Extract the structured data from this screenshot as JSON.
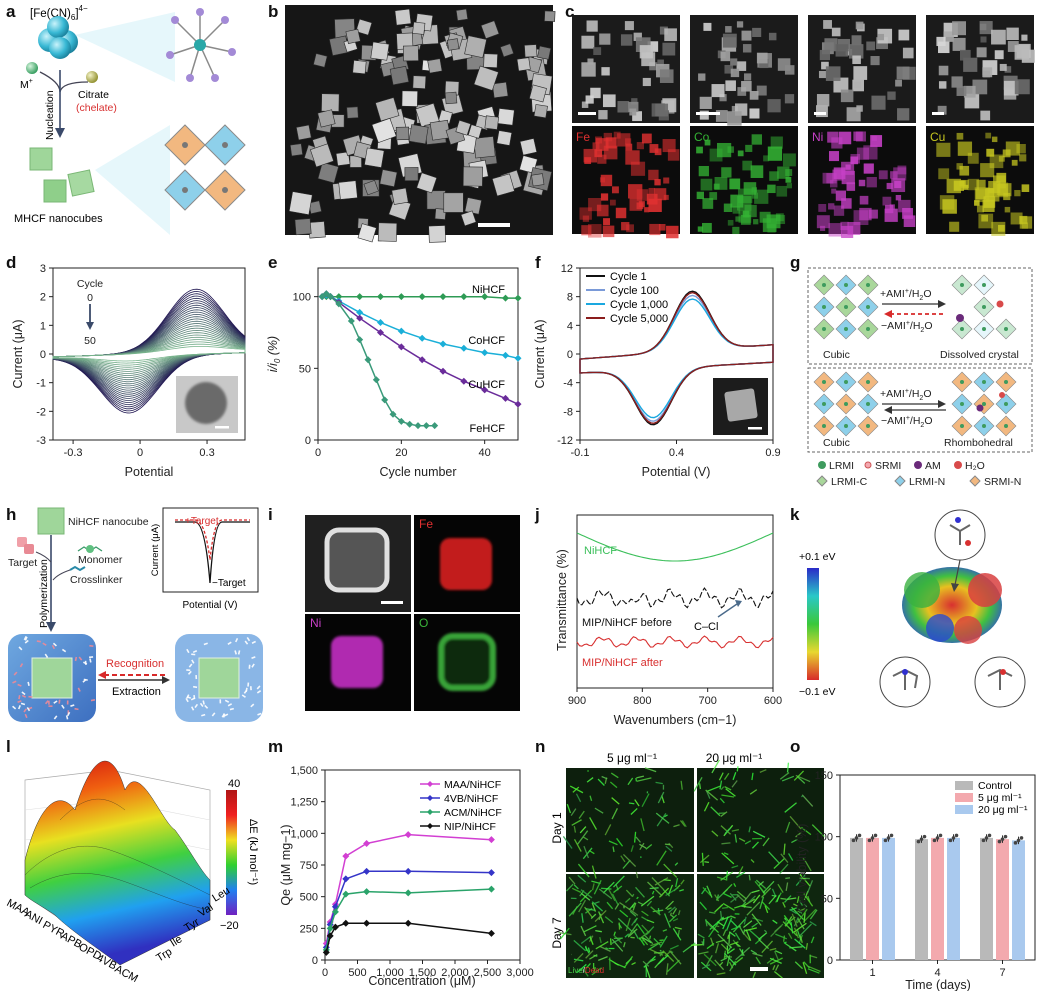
{
  "panel_labels": [
    "a",
    "b",
    "c",
    "d",
    "e",
    "f",
    "g",
    "h",
    "i",
    "j",
    "k",
    "l",
    "m",
    "n",
    "o"
  ],
  "panel_a": {
    "formula_main": "[Fe(CN)",
    "formula_sub": "6",
    "formula_end": "]",
    "formula_sup": "4−",
    "metal": "M",
    "metal_sup": "+",
    "citrate": "Citrate",
    "chelate": "(chelate)",
    "nucleation": "Nucleation",
    "product": "MHCF nanocubes"
  },
  "panel_c": {
    "elements": [
      "Fe",
      "Co",
      "Ni",
      "Cu"
    ],
    "element_colors": [
      "#e03030",
      "#34b334",
      "#c640c6",
      "#c8c820"
    ]
  },
  "panel_d": {
    "cycle_label": "Cycle",
    "cycle_start": "0",
    "cycle_end": "50",
    "ylabel": "Current (μA)",
    "xlabel": "Potential",
    "xticks": [
      "-0.3",
      "0",
      "0.3"
    ],
    "yticks": [
      "3",
      "2",
      "1",
      "0",
      "-1",
      "-2",
      "-3"
    ]
  },
  "panel_h": {
    "nanocube": "NiHCF nanocube",
    "monomer": "Monomer",
    "crosslinker": "Crosslinker",
    "target": "Target",
    "polymerization": "Polymerization",
    "recognition": "Recognition",
    "extraction": "Extraction",
    "inset_plus": "+Target",
    "inset_minus": "−Target",
    "inset_ylabel": "Current (μA)",
    "inset_xlabel": "Potential (V)"
  },
  "panel_i": {
    "elements": [
      "Fe",
      "Ni",
      "O"
    ]
  },
  "panel_g": {
    "cubic": "Cubic",
    "dissolved": "Dissolved crystal",
    "rhombohedral": "Rhombohedral",
    "plus": "+AMI",
    "minus": "−AMI",
    "h2o": "/H",
    "legend": [
      "LRMI",
      "SRMI",
      "AM",
      "H₂O",
      "LRMI-C",
      "LRMI-N",
      "SRMI-N"
    ]
  },
  "panel_k": {
    "cbar_top": "+0.1 eV",
    "cbar_bottom": "−0.1 eV"
  },
  "panel_l": {
    "cbar_label": "ΔE (kJ mol⁻¹)",
    "cbar_max": "40",
    "cbar_min": "−20",
    "monomers": [
      "MAA",
      "ANI",
      "PYR",
      "APB",
      "OPD",
      "4VB",
      "ACM"
    ],
    "amino_acids": [
      "Leu",
      "Val",
      "Tyr",
      "Ile",
      "Trp"
    ]
  },
  "panel_n": {
    "col_labels": [
      "5 μg ml⁻¹",
      "20 μg ml⁻¹"
    ],
    "row_labels": [
      "Day 1",
      "Day 7"
    ],
    "live": "Live",
    "slash": "/",
    "dead": "Dead"
  },
  "chart_data": [
    {
      "panel": "e",
      "type": "line",
      "xlabel": "Cycle number",
      "ylabel": "i/i0 (%)",
      "xlim": [
        0,
        48
      ],
      "ylim": [
        0,
        120
      ],
      "xticks": [
        0,
        20,
        40
      ],
      "yticks": [
        0,
        50,
        100
      ],
      "series": [
        {
          "name": "NiHCF",
          "color": "#2e9b55",
          "x": [
            1,
            2,
            3,
            5,
            10,
            15,
            20,
            25,
            30,
            35,
            40,
            45,
            48
          ],
          "y": [
            100,
            100,
            100,
            100,
            100,
            100,
            100,
            100,
            100,
            100,
            100,
            99,
            99
          ]
        },
        {
          "name": "CoHCF",
          "color": "#1aafd8",
          "x": [
            1,
            2,
            3,
            5,
            10,
            15,
            20,
            25,
            30,
            35,
            40,
            45,
            48
          ],
          "y": [
            100,
            101,
            100,
            97,
            89,
            82,
            76,
            71,
            67,
            64,
            61,
            59,
            57
          ]
        },
        {
          "name": "CuHCF",
          "color": "#6a2c9a",
          "x": [
            1,
            2,
            3,
            5,
            10,
            15,
            20,
            25,
            30,
            35,
            40,
            45,
            48
          ],
          "y": [
            100,
            102,
            100,
            96,
            85,
            75,
            65,
            56,
            48,
            41,
            35,
            29,
            25
          ]
        },
        {
          "name": "FeHCF",
          "color": "#3a9a7a",
          "x": [
            1,
            2,
            3,
            5,
            8,
            10,
            12,
            14,
            16,
            18,
            20,
            22,
            24,
            26,
            28
          ],
          "y": [
            100,
            102,
            100,
            95,
            83,
            70,
            56,
            42,
            28,
            18,
            13,
            11,
            10,
            10,
            10
          ]
        }
      ]
    },
    {
      "panel": "f",
      "type": "line",
      "xlabel": "Potential (V)",
      "ylabel": "Current (μA)",
      "xlim": [
        -0.1,
        0.9
      ],
      "ylim": [
        -12,
        12
      ],
      "xticks": [
        -0.1,
        0.4,
        0.9
      ],
      "yticks": [
        -12,
        -8,
        -4,
        0,
        4,
        8,
        12
      ],
      "series": [
        {
          "name": "Cycle 1",
          "color": "#111111",
          "peak_anodic": 8.3,
          "peak_cathodic": -7.8
        },
        {
          "name": "Cycle 100",
          "color": "#7a9ad8",
          "peak_anodic": 7.7,
          "peak_cathodic": -7.3
        },
        {
          "name": "Cycle 1,000",
          "color": "#1aa8e0",
          "peak_anodic": 7.2,
          "peak_cathodic": -6.8
        },
        {
          "name": "Cycle 5,000",
          "color": "#8b1d1d",
          "peak_anodic": 8.1,
          "peak_cathodic": -7.6
        }
      ]
    },
    {
      "panel": "j",
      "type": "line",
      "xlabel": "Wavenumbers (cm−1)",
      "ylabel": "Transmittance (%)",
      "xlim": [
        900,
        600
      ],
      "xticks": [
        900,
        800,
        700,
        600
      ],
      "series": [
        {
          "name": "NiHCF",
          "color": "#3bbf5a"
        },
        {
          "name": "MIP/NiHCF before",
          "color": "#111111"
        },
        {
          "name": "MIP/NiHCF after",
          "color": "#d83030"
        }
      ],
      "annotation": "C–Cl"
    },
    {
      "panel": "m",
      "type": "line",
      "xlabel": "Concentration (μM)",
      "ylabel": "Qe (μM mg−1)",
      "xlim": [
        0,
        3000
      ],
      "ylim": [
        0,
        1500
      ],
      "xticks": [
        0,
        500,
        1000,
        1500,
        2000,
        2500,
        3000
      ],
      "xtick_labels": [
        "0",
        "500",
        "1,000",
        "1,500",
        "2,000",
        "2,500",
        "3,000"
      ],
      "yticks": [
        0,
        250,
        500,
        750,
        1000,
        1250,
        1500
      ],
      "ytick_labels": [
        "0",
        "250",
        "500",
        "750",
        "1,000",
        "1,250",
        "1,500"
      ],
      "series": [
        {
          "name": "MAA/NiHCF",
          "color": "#d23fd2",
          "x": [
            20,
            80,
            160,
            320,
            640,
            1280,
            2560
          ],
          "y": [
            130,
            300,
            440,
            820,
            920,
            990,
            950
          ]
        },
        {
          "name": "4VB/NiHCF",
          "color": "#3535c8",
          "x": [
            20,
            80,
            160,
            320,
            640,
            1280,
            2560
          ],
          "y": [
            100,
            280,
            420,
            640,
            700,
            700,
            690
          ]
        },
        {
          "name": "ACM/NiHCF",
          "color": "#2aa36a",
          "x": [
            20,
            80,
            160,
            320,
            640,
            1280,
            2560
          ],
          "y": [
            80,
            250,
            380,
            520,
            540,
            530,
            560
          ]
        },
        {
          "name": "NIP/NiHCF",
          "color": "#111111",
          "x": [
            20,
            80,
            160,
            320,
            640,
            1280,
            2560
          ],
          "y": [
            60,
            190,
            260,
            290,
            290,
            290,
            210
          ]
        }
      ]
    },
    {
      "panel": "o",
      "type": "bar",
      "xlabel": "Time (days)",
      "ylabel": "Cell viability (%)",
      "categories": [
        "1",
        "4",
        "7"
      ],
      "ylim": [
        0,
        150
      ],
      "yticks": [
        0,
        50,
        100,
        150
      ],
      "series": [
        {
          "name": "Control",
          "color": "#b9b9b9",
          "values": [
            99,
            98,
            99
          ]
        },
        {
          "name": "5 μg ml⁻¹",
          "color": "#f3a9ae",
          "values": [
            99,
            99,
            98
          ]
        },
        {
          "name": "20 μg ml⁻¹",
          "color": "#a9c9ee",
          "values": [
            99,
            99,
            97
          ]
        }
      ]
    }
  ]
}
